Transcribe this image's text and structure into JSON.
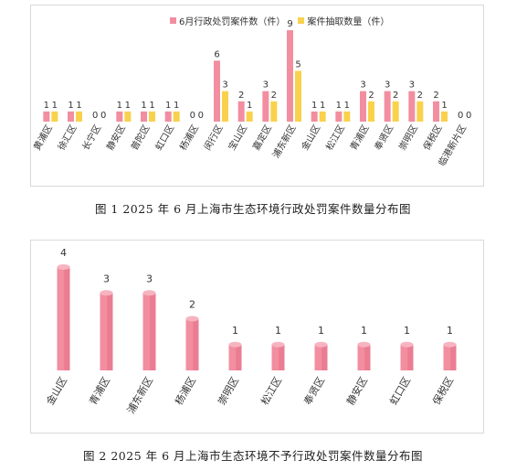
{
  "chart_data": [
    {
      "type": "bar",
      "title": "",
      "categories": [
        "黄浦区",
        "徐汇区",
        "长宁区",
        "静安区",
        "普陀区",
        "虹口区",
        "杨浦区",
        "闵行区",
        "宝山区",
        "嘉定区",
        "浦东新区",
        "金山区",
        "松江区",
        "青浦区",
        "奉贤区",
        "崇明区",
        "保税区",
        "临港新片区"
      ],
      "series": [
        {
          "name": "6月行政处罚案件数（件）",
          "values": [
            1,
            1,
            0,
            1,
            1,
            1,
            0,
            6,
            2,
            3,
            9,
            1,
            1,
            3,
            3,
            3,
            2,
            0
          ],
          "color": "#f28ea0"
        },
        {
          "name": "案件抽取数量（件）",
          "values": [
            1,
            1,
            0,
            1,
            1,
            1,
            0,
            3,
            1,
            2,
            5,
            1,
            1,
            2,
            2,
            2,
            1,
            0
          ],
          "color": "#f9d24d"
        }
      ],
      "ylim": [
        0,
        9
      ],
      "grid": false,
      "legend": "top",
      "caption": "图 1   2025 年 6 月上海市生态环境行政处罚案件数量分布图"
    },
    {
      "type": "bar",
      "title": "",
      "categories": [
        "金山区",
        "青浦区",
        "浦东新区",
        "杨浦区",
        "崇明区",
        "松江区",
        "奉贤区",
        "静安区",
        "虹口区",
        "保税区"
      ],
      "values": [
        4,
        3,
        3,
        2,
        1,
        1,
        1,
        1,
        1,
        1
      ],
      "color": "#f28ea0",
      "ylim": [
        0,
        4
      ],
      "grid": false,
      "caption": "图 2   2025 年 6 月上海市生态环境不予行政处罚案件数量分布图"
    }
  ]
}
